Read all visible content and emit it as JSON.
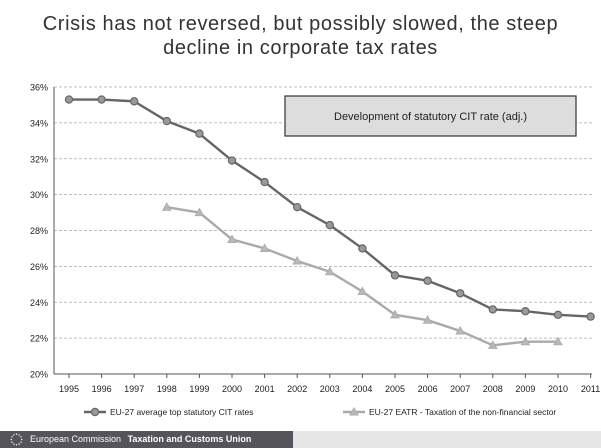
{
  "title_lines": [
    "Crisis has not reversed, but possibly slowed, the steep",
    "decline in corporate tax rates"
  ],
  "footer": {
    "organization": "European Commission",
    "department": "Taxation and Customs Union"
  },
  "chart_data": {
    "type": "line",
    "annotation_box": "Development of statutory CIT rate (adj.)",
    "x": [
      "1995",
      "1996",
      "1997",
      "1998",
      "1999",
      "2000",
      "2001",
      "2002",
      "2003",
      "2004",
      "2005",
      "2006",
      "2007",
      "2008",
      "2009",
      "2010",
      "2011"
    ],
    "ylim": [
      20,
      36
    ],
    "yticks": [
      20,
      22,
      24,
      26,
      28,
      30,
      32,
      34,
      36
    ],
    "ytick_labels": [
      "20%",
      "22%",
      "24%",
      "26%",
      "28%",
      "30%",
      "32%",
      "34%",
      "36%"
    ],
    "grid": "horizontal dashed",
    "legend_position": "bottom",
    "series": [
      {
        "name": "EU-27 average top statutory CIT rates",
        "color": "#666666",
        "marker": "circle",
        "values": [
          35.3,
          35.3,
          35.2,
          34.1,
          33.4,
          31.9,
          30.7,
          29.3,
          28.3,
          27.0,
          25.5,
          25.2,
          24.5,
          23.6,
          23.5,
          23.3,
          23.2
        ]
      },
      {
        "name": "EU-27 EATR - Taxation of the non-financial sector",
        "color": "#aaaaaa",
        "marker": "triangle",
        "values": [
          null,
          null,
          null,
          29.3,
          29.0,
          27.5,
          27.0,
          26.3,
          25.7,
          24.6,
          23.3,
          23.0,
          22.4,
          21.6,
          21.8,
          21.8,
          null
        ]
      }
    ]
  }
}
